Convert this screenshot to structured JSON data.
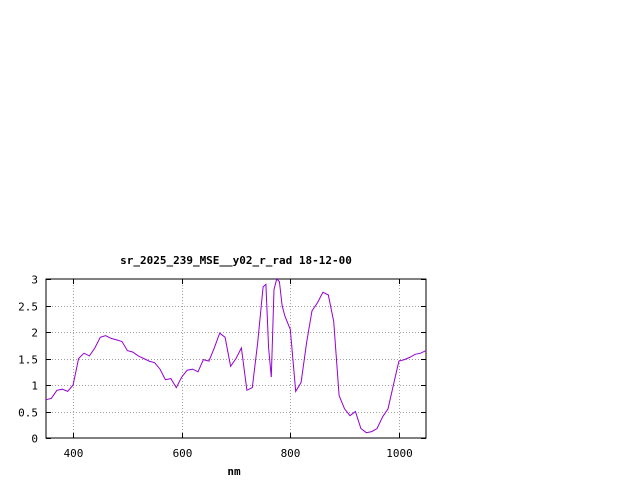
{
  "chart_data": {
    "type": "line",
    "title": "sr_2025_239_MSE__y02_r_rad 18-12-00",
    "xlabel": "nm",
    "ylabel": "",
    "xlim": [
      350,
      1050
    ],
    "ylim": [
      0,
      3
    ],
    "x_ticks": [
      400,
      600,
      800,
      1000
    ],
    "x_tick_labels": [
      "400",
      "600",
      "800",
      "1000"
    ],
    "y_ticks": [
      0,
      0.5,
      1,
      1.5,
      2,
      2.5,
      3
    ],
    "y_tick_labels": [
      "0",
      "0.5",
      "1",
      "1.5",
      "2",
      "2.5",
      "3"
    ],
    "grid": true,
    "legend": "none",
    "series": [
      {
        "color": "#9400d3",
        "x": [
          350,
          360,
          370,
          380,
          390,
          400,
          410,
          420,
          430,
          440,
          450,
          460,
          470,
          480,
          490,
          500,
          510,
          520,
          530,
          540,
          550,
          560,
          570,
          580,
          590,
          600,
          610,
          620,
          630,
          640,
          650,
          660,
          670,
          680,
          690,
          700,
          710,
          720,
          730,
          740,
          750,
          755,
          760,
          765,
          770,
          775,
          780,
          785,
          790,
          800,
          810,
          820,
          830,
          840,
          850,
          860,
          870,
          880,
          890,
          900,
          910,
          920,
          930,
          940,
          950,
          960,
          970,
          980,
          990,
          1000,
          1010,
          1020,
          1030,
          1040,
          1050
        ],
        "y": [
          0.72,
          0.75,
          0.9,
          0.92,
          0.88,
          1.0,
          1.5,
          1.6,
          1.55,
          1.7,
          1.9,
          1.93,
          1.88,
          1.85,
          1.82,
          1.65,
          1.62,
          1.55,
          1.5,
          1.45,
          1.42,
          1.3,
          1.1,
          1.12,
          0.95,
          1.15,
          1.28,
          1.3,
          1.25,
          1.48,
          1.45,
          1.7,
          1.98,
          1.9,
          1.35,
          1.5,
          1.7,
          0.9,
          0.95,
          1.8,
          2.85,
          2.9,
          1.7,
          1.15,
          2.8,
          3.0,
          2.95,
          2.5,
          2.3,
          2.05,
          0.88,
          1.05,
          1.8,
          2.4,
          2.55,
          2.75,
          2.7,
          2.2,
          0.8,
          0.55,
          0.42,
          0.5,
          0.18,
          0.1,
          0.12,
          0.18,
          0.4,
          0.55,
          1.0,
          1.45,
          1.48,
          1.52,
          1.58,
          1.6,
          1.65
        ]
      }
    ]
  }
}
